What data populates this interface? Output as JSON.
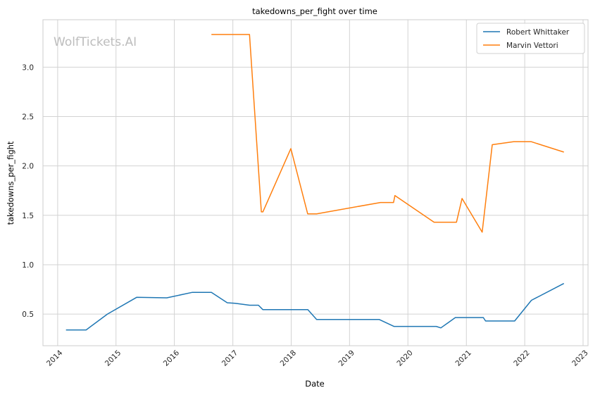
{
  "chart_data": {
    "type": "line",
    "title": "takedowns_per_fight over time",
    "xlabel": "Date",
    "ylabel": "takedowns_per_fight",
    "watermark": "WolfTickets.AI",
    "x_ticks": [
      "2014",
      "2015",
      "2016",
      "2017",
      "2018",
      "2019",
      "2020",
      "2021",
      "2022",
      "2023"
    ],
    "y_ticks": [
      "0.5",
      "1.0",
      "1.5",
      "2.0",
      "2.5",
      "3.0"
    ],
    "xlim": [
      "2013-10-01",
      "2023-02-01"
    ],
    "ylim": [
      0.18,
      3.48
    ],
    "grid": true,
    "legend_position": "top-right",
    "series": [
      {
        "name": "Robert Whittaker",
        "color": "#1f77b4",
        "points": [
          [
            "2014-02-22",
            0.34
          ],
          [
            "2014-06-28",
            0.34
          ],
          [
            "2014-11-08",
            0.5
          ],
          [
            "2015-05-10",
            0.67
          ],
          [
            "2015-11-15",
            0.665
          ],
          [
            "2016-04-23",
            0.72
          ],
          [
            "2016-08-20",
            0.72
          ],
          [
            "2016-11-27",
            0.615
          ],
          [
            "2017-01-15",
            0.61
          ],
          [
            "2017-04-16",
            0.59
          ],
          [
            "2017-06-10",
            0.59
          ],
          [
            "2017-07-08",
            0.545
          ],
          [
            "2018-04-15",
            0.545
          ],
          [
            "2018-06-09",
            0.445
          ],
          [
            "2019-07-06",
            0.445
          ],
          [
            "2019-10-06",
            0.375
          ],
          [
            "2020-06-27",
            0.375
          ],
          [
            "2020-07-25",
            0.36
          ],
          [
            "2020-10-24",
            0.465
          ],
          [
            "2021-04-17",
            0.465
          ],
          [
            "2021-05-01",
            0.43
          ],
          [
            "2021-10-30",
            0.43
          ],
          [
            "2022-02-12",
            0.64
          ],
          [
            "2022-09-03",
            0.81
          ]
        ]
      },
      {
        "name": "Marvin Vettori",
        "color": "#ff7f0e",
        "points": [
          [
            "2016-08-20",
            3.33
          ],
          [
            "2017-04-15",
            3.33
          ],
          [
            "2017-06-28",
            1.535
          ],
          [
            "2017-07-08",
            1.535
          ],
          [
            "2017-12-30",
            2.175
          ],
          [
            "2018-04-14",
            1.515
          ],
          [
            "2018-06-09",
            1.515
          ],
          [
            "2019-07-13",
            1.63
          ],
          [
            "2019-10-03",
            1.63
          ],
          [
            "2019-10-12",
            1.7
          ],
          [
            "2020-06-13",
            1.43
          ],
          [
            "2020-10-31",
            1.43
          ],
          [
            "2020-12-05",
            1.67
          ],
          [
            "2021-04-10",
            1.33
          ],
          [
            "2021-06-12",
            2.215
          ],
          [
            "2021-10-23",
            2.245
          ],
          [
            "2022-02-12",
            2.245
          ],
          [
            "2022-09-03",
            2.14
          ]
        ]
      }
    ]
  }
}
